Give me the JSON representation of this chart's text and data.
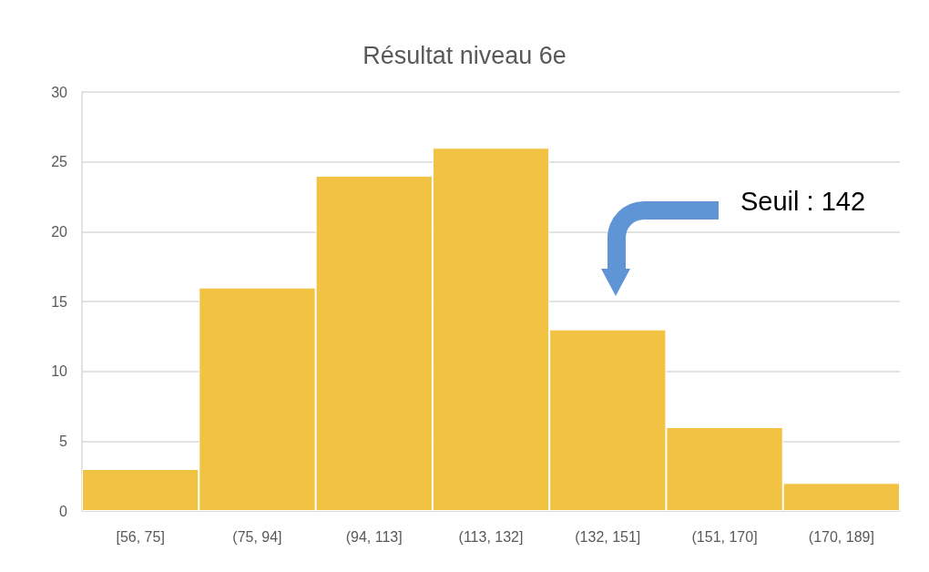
{
  "chart_data": {
    "type": "bar",
    "title": "Résultat niveau 6e",
    "categories": [
      "[56, 75]",
      "(75, 94]",
      "(94, 113]",
      "(113, 132]",
      "(132, 151]",
      "(151, 170]",
      "(170, 189]"
    ],
    "values": [
      3,
      16,
      24,
      26,
      13,
      6,
      2
    ],
    "color": "#f2c242",
    "ylim": [
      0,
      30
    ],
    "yticks": [
      0,
      5,
      10,
      15,
      20,
      25,
      30
    ],
    "grid": "y",
    "annotations": [
      "Seuil : 142"
    ]
  }
}
